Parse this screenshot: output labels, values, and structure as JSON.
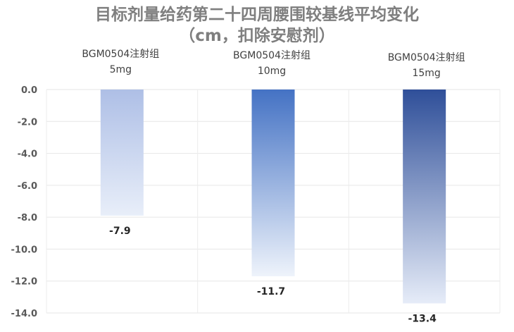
{
  "chart_data": {
    "type": "bar",
    "title_line1": "目标剂量给药第二十四周腰围较基线平均变化",
    "title_line2": "（cm，扣除安慰剂）",
    "categories": [
      [
        "BGM0504注射组",
        "5mg"
      ],
      [
        "BGM0504注射组",
        "10mg"
      ],
      [
        "BGM0504注射组",
        "15mg"
      ]
    ],
    "values": [
      -7.9,
      -11.7,
      -13.4
    ],
    "data_labels": [
      "-7.9",
      "-11.7",
      "-13.4"
    ],
    "ylim": [
      -14.0,
      0.0
    ],
    "yticks": [
      "0.0",
      "-2.0",
      "-4.0",
      "-6.0",
      "-8.0",
      "-10.0",
      "-12.0",
      "-14.0"
    ],
    "grid": true,
    "colors": {
      "bar1_top": "#aebfe6",
      "bar1_bottom": "#e8eef9",
      "bar2_top": "#4472c4",
      "bar2_bottom": "#eef3fb",
      "bar3_top": "#2f4f99",
      "bar3_bottom": "#e6ecf8"
    }
  }
}
